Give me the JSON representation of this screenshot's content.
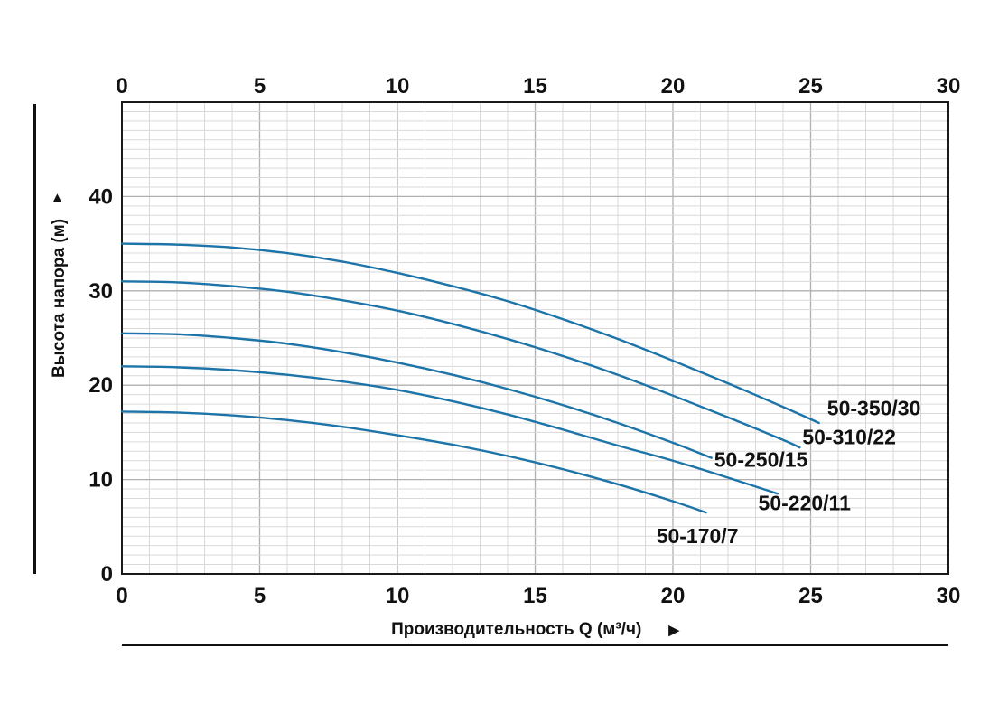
{
  "figure": {
    "background": "#ffffff",
    "curve_color": "#1c74a8",
    "grid_minor_color": "#d9d9d9",
    "grid_major_color": "#b0b0b0",
    "border_color": "#1a1a1a",
    "text_color": "#111111"
  },
  "labels": {
    "up_arrow": "▲",
    "right_arrow": "▶"
  },
  "chart_data": {
    "type": "line",
    "title": "",
    "xlabel": "Производительность Q (м³/ч)",
    "ylabel": "Высота напора (м)",
    "xlim": [
      0,
      30
    ],
    "ylim": [
      0,
      50
    ],
    "x_ticks": [
      0,
      5,
      10,
      15,
      20,
      25,
      30
    ],
    "y_ticks": [
      0,
      10,
      20,
      30,
      40
    ],
    "x_minor_step": 1,
    "y_minor_step": 1,
    "grid": true,
    "legend_position": "inline-labels",
    "series": [
      {
        "name": "50-350/30",
        "points": [
          [
            0,
            35
          ],
          [
            2,
            34.9
          ],
          [
            4,
            34.6
          ],
          [
            6,
            34.0
          ],
          [
            8,
            33.1
          ],
          [
            10,
            31.9
          ],
          [
            12,
            30.5
          ],
          [
            14,
            28.9
          ],
          [
            16,
            27.0
          ],
          [
            18,
            24.9
          ],
          [
            20,
            22.6
          ],
          [
            22,
            20.2
          ],
          [
            24,
            17.7
          ],
          [
            25.3,
            16.0
          ]
        ],
        "label_at": [
          25.6,
          17.6
        ]
      },
      {
        "name": "50-310/22",
        "points": [
          [
            0,
            31
          ],
          [
            2,
            30.9
          ],
          [
            4,
            30.5
          ],
          [
            6,
            29.9
          ],
          [
            8,
            29.0
          ],
          [
            10,
            27.9
          ],
          [
            12,
            26.5
          ],
          [
            14,
            24.9
          ],
          [
            16,
            23.1
          ],
          [
            18,
            21.1
          ],
          [
            20,
            18.9
          ],
          [
            22,
            16.6
          ],
          [
            24,
            14.2
          ],
          [
            24.6,
            13.4
          ]
        ],
        "label_at": [
          24.7,
          14.5
        ]
      },
      {
        "name": "50-250/15",
        "points": [
          [
            0,
            25.5
          ],
          [
            2,
            25.4
          ],
          [
            4,
            25.0
          ],
          [
            6,
            24.4
          ],
          [
            8,
            23.5
          ],
          [
            10,
            22.4
          ],
          [
            12,
            21.1
          ],
          [
            14,
            19.6
          ],
          [
            16,
            17.9
          ],
          [
            18,
            16.0
          ],
          [
            20,
            13.9
          ],
          [
            21.4,
            12.3
          ]
        ],
        "label_at": [
          21.5,
          12.1
        ]
      },
      {
        "name": "50-220/11",
        "points": [
          [
            0,
            22
          ],
          [
            2,
            21.9
          ],
          [
            4,
            21.6
          ],
          [
            6,
            21.1
          ],
          [
            8,
            20.4
          ],
          [
            10,
            19.5
          ],
          [
            12,
            18.3
          ],
          [
            14,
            16.9
          ],
          [
            16,
            15.3
          ],
          [
            18,
            13.6
          ],
          [
            20,
            12.0
          ],
          [
            22,
            10.2
          ],
          [
            23.8,
            8.5
          ]
        ],
        "label_at": [
          23.1,
          7.5
        ]
      },
      {
        "name": "50-170/7",
        "points": [
          [
            0,
            17.2
          ],
          [
            2,
            17.1
          ],
          [
            4,
            16.8
          ],
          [
            6,
            16.3
          ],
          [
            8,
            15.6
          ],
          [
            10,
            14.7
          ],
          [
            12,
            13.7
          ],
          [
            14,
            12.5
          ],
          [
            16,
            11.1
          ],
          [
            18,
            9.5
          ],
          [
            20,
            7.7
          ],
          [
            21.2,
            6.5
          ]
        ],
        "label_at": [
          19.4,
          4.0
        ]
      }
    ]
  }
}
